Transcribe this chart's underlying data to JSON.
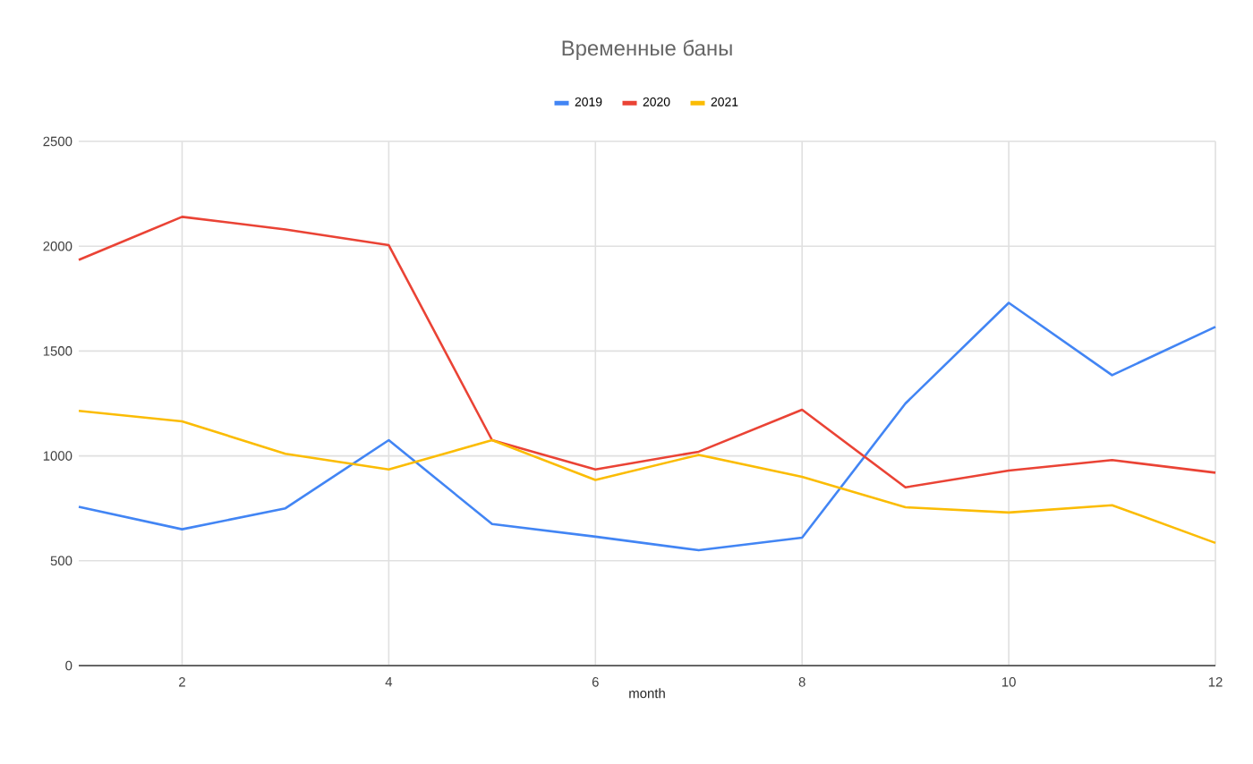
{
  "chart_data": {
    "type": "line",
    "title": "Временные баны",
    "xlabel": "month",
    "x": [
      1,
      2,
      3,
      4,
      5,
      6,
      7,
      8,
      9,
      10,
      11,
      12
    ],
    "xlim": [
      1,
      12
    ],
    "xticks": [
      2,
      4,
      6,
      8,
      10,
      12
    ],
    "ylim": [
      0,
      2500
    ],
    "yticks": [
      0,
      500,
      1000,
      1500,
      2000,
      2500
    ],
    "grid": true,
    "legend": "top",
    "series": [
      {
        "name": "2019",
        "color": "#4285f4",
        "values": [
          757,
          650,
          750,
          1075,
          675,
          615,
          550,
          610,
          1250,
          1730,
          1385,
          1615
        ]
      },
      {
        "name": "2020",
        "color": "#ea4335",
        "values": [
          1935,
          2140,
          2080,
          2005,
          1075,
          935,
          1020,
          1220,
          850,
          930,
          980,
          920
        ]
      },
      {
        "name": "2021",
        "color": "#fbbc04",
        "values": [
          1215,
          1165,
          1010,
          935,
          1075,
          885,
          1005,
          900,
          755,
          730,
          765,
          585
        ]
      }
    ]
  }
}
